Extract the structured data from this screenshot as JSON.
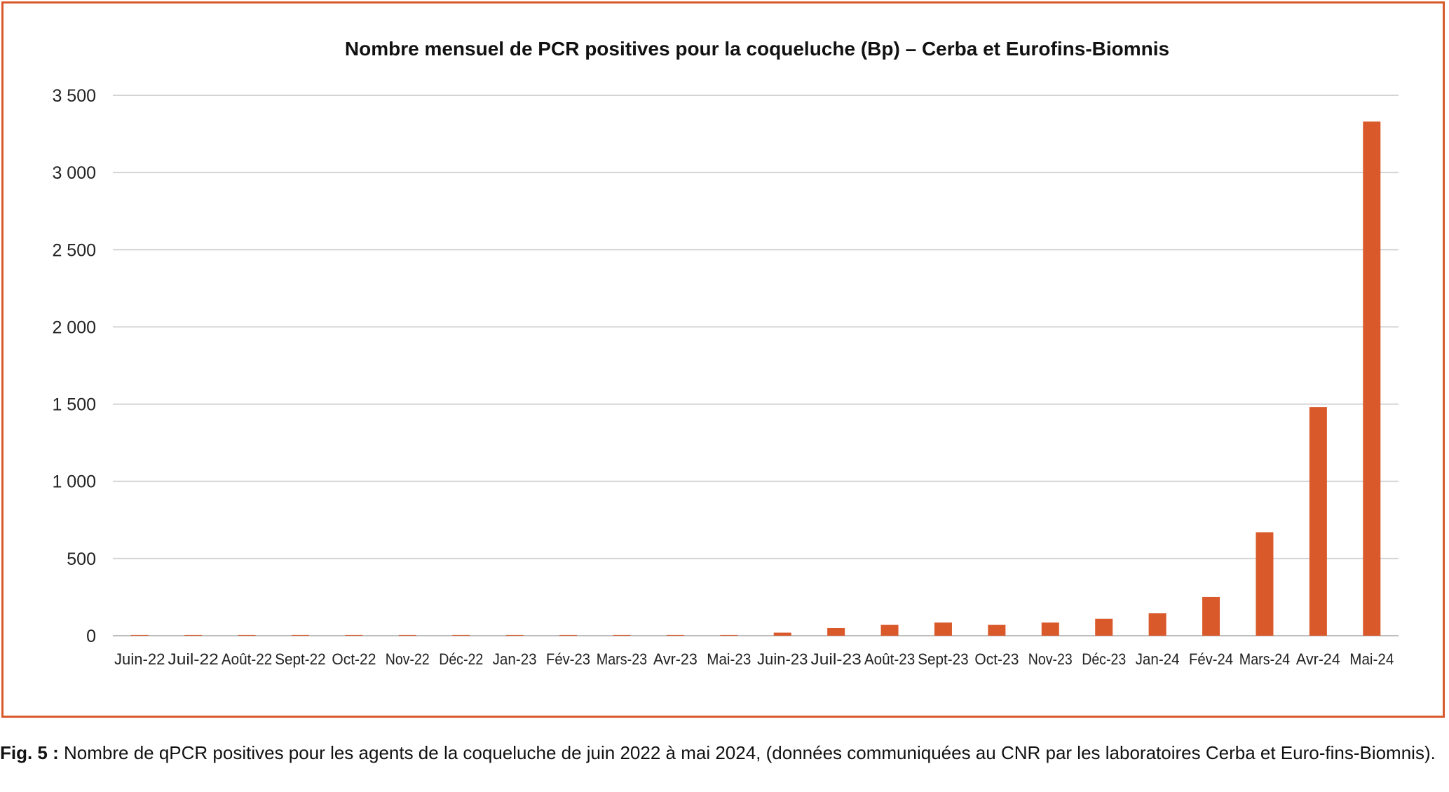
{
  "caption": {
    "label": "Fig. 5 :",
    "text": " Nombre de qPCR positives pour les agents de la coqueluche de juin 2022 à mai 2024, (données communiquées au CNR par les laboratoires Cerba et Euro-fins-Biomnis)."
  },
  "chart_data": {
    "type": "bar",
    "title": "Nombre mensuel de PCR positives pour la coqueluche (Bp) – Cerba et Eurofins-Biomnis",
    "xlabel": "",
    "ylabel": "",
    "ylim": [
      0,
      3500
    ],
    "yticks": [
      0,
      500,
      1000,
      1500,
      2000,
      2500,
      3000,
      3500
    ],
    "ytick_labels": [
      "0",
      "500",
      "1 000",
      "1 500",
      "2 000",
      "2 500",
      "3 000",
      "3 500"
    ],
    "grid": true,
    "legend": "none",
    "bar_color": "#d9592b",
    "categories": [
      "Juin-22",
      "Juil-22",
      "Août-22",
      "Sept-22",
      "Oct-22",
      "Nov-22",
      "Déc-22",
      "Jan-23",
      "Fév-23",
      "Mars-23",
      "Avr-23",
      "Mai-23",
      "Juin-23",
      "Juil-23",
      "Août-23",
      "Sept-23",
      "Oct-23",
      "Nov-23",
      "Déc-23",
      "Jan-24",
      "Fév-24",
      "Mars-24",
      "Avr-24",
      "Mai-24"
    ],
    "values": [
      5,
      5,
      5,
      5,
      5,
      5,
      5,
      5,
      5,
      5,
      5,
      5,
      20,
      50,
      70,
      85,
      70,
      85,
      110,
      145,
      250,
      670,
      1480,
      3330
    ]
  }
}
